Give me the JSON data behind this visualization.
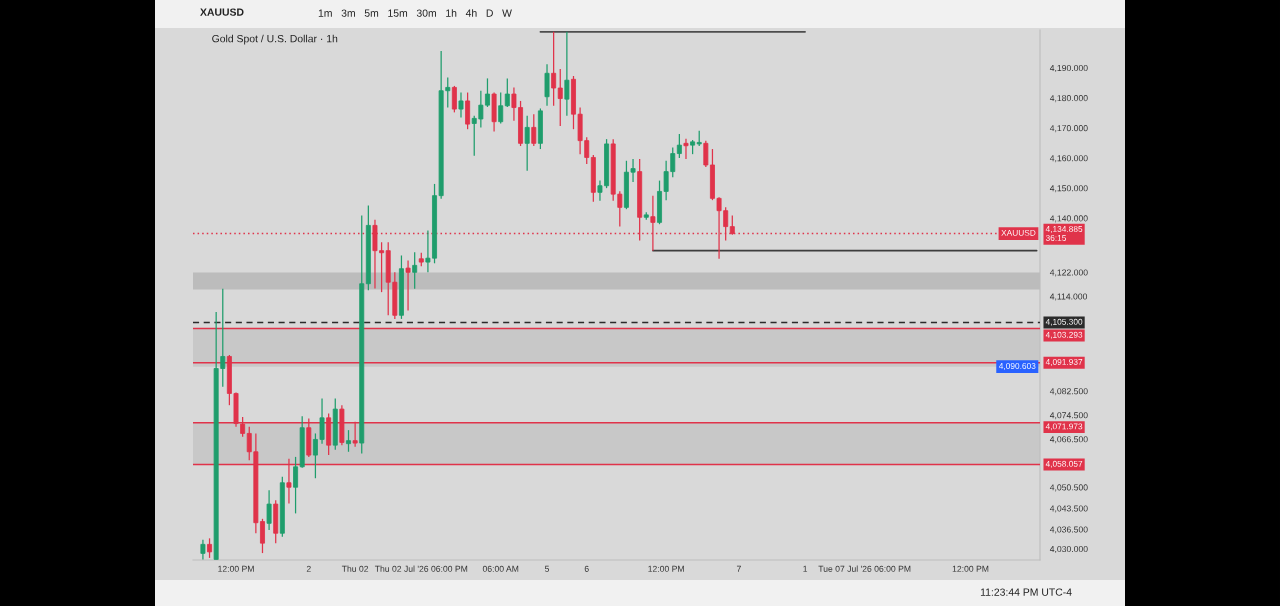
{
  "chart_data": {
    "type": "candlestick",
    "title": "Gold Spot / U.S. Dollar · 1h",
    "subtitle": "XAUUSD",
    "annotations": [
      "1m   3m   5m   15m   30m   1h   4h   D   W",
      "11:23:44 PM UTC-4",
      {
        "text": "XAUUSD",
        "y": 4134.885
      }
    ],
    "categories": [
      null,
      null,
      null,
      null,
      null,
      null,
      "12:00 PM",
      null,
      null,
      null,
      null,
      null,
      null,
      null,
      null,
      null,
      null,
      "2",
      null,
      null,
      null,
      null,
      null,
      null,
      "Thu 02",
      null,
      null,
      null,
      null,
      null,
      null,
      null,
      null,
      null,
      "Thu 02 Jul '26 06:00 PM",
      null,
      null,
      null,
      null,
      null,
      null,
      null,
      null,
      null,
      null,
      null,
      "06:00 AM",
      null,
      null,
      null,
      null,
      null,
      null,
      "5",
      null,
      null,
      null,
      null,
      null,
      "6",
      null,
      null,
      null,
      null,
      null,
      null,
      null,
      null,
      null,
      null,
      null,
      "12:00 PM",
      null,
      null,
      null,
      null,
      null,
      null,
      null,
      null,
      null,
      null,
      "7",
      null,
      null,
      null,
      null,
      null,
      null,
      null,
      null,
      null,
      "1",
      null,
      null,
      null,
      null,
      null,
      null,
      null,
      null,
      "Tue 07 Jul '26 06:00 PM",
      null,
      null,
      null,
      null,
      null,
      null,
      null,
      null,
      null,
      null,
      null,
      null,
      null,
      null,
      null,
      "12:00 PM",
      null,
      null,
      null,
      null,
      null,
      null,
      null,
      null,
      null,
      null
    ],
    "ohlc": [
      null,
      [
        4028.5,
        4033.0,
        4026.5,
        4031.5
      ],
      [
        4031.5,
        4033.5,
        4027.0,
        4029.0
      ],
      [
        4026.5,
        4108.8,
        4026.5,
        4090.0
      ],
      [
        4090.0,
        4116.5,
        4083.9,
        4094.0
      ],
      [
        4094.0,
        4094.5,
        4077.8,
        4081.7
      ],
      [
        4081.7,
        4082.0,
        4070.6,
        4071.7
      ],
      [
        4071.5,
        4073.9,
        4067.3,
        4068.4
      ],
      [
        4068.4,
        4070.6,
        4059.5,
        4062.3
      ],
      [
        4062.3,
        4068.4,
        4035.2,
        4038.7
      ],
      [
        4039.1,
        4040.0,
        4028.6,
        4031.9
      ],
      [
        4038.5,
        4049.5,
        4036.3,
        4044.9
      ],
      [
        4044.9,
        4046.2,
        4031.9,
        4035.2
      ],
      [
        4035.2,
        4054.0,
        4034.0,
        4052.0
      ],
      [
        4052.0,
        4060.0,
        4045.1,
        4050.5
      ],
      [
        4050.5,
        4060.6,
        4041.8,
        4057.3
      ],
      [
        4057.3,
        4074.1,
        4057.0,
        4070.3
      ],
      [
        4070.3,
        4073.4,
        4060.6,
        4061.2
      ],
      [
        4061.2,
        4068.4,
        4053.5,
        4066.4
      ],
      [
        4066.4,
        4080.0,
        4065.0,
        4073.6
      ],
      [
        4073.6,
        4075.0,
        4061.2,
        4064.5
      ],
      [
        4064.5,
        4080.0,
        4063.0,
        4076.5
      ],
      [
        4076.5,
        4077.8,
        4064.5,
        4065.4
      ],
      [
        4065.0,
        4069.5,
        4062.3,
        4066.0
      ],
      [
        4066.0,
        4072.3,
        4064.0,
        4065.2
      ],
      [
        4065.2,
        4140.9,
        4061.7,
        4118.2
      ],
      [
        4118.2,
        4144.2,
        4116.0,
        4137.6
      ],
      [
        4137.6,
        4139.5,
        4116.6,
        4129.2
      ],
      [
        4129.2,
        4132.0,
        4115.4,
        4128.5
      ],
      [
        4129.2,
        4132.0,
        4107.7,
        4118.7
      ],
      [
        4118.7,
        4122.0,
        4106.5,
        4107.7
      ],
      [
        4107.7,
        4127.6,
        4106.5,
        4123.2
      ],
      [
        4123.4,
        4125.9,
        4109.3,
        4122.0
      ],
      [
        4122.0,
        4128.7,
        4116.5,
        4124.3
      ],
      [
        4126.5,
        4128.5,
        4124.0,
        4125.4
      ],
      [
        4125.4,
        4135.9,
        4122.0,
        4126.7
      ],
      [
        4126.7,
        4151.4,
        4125.0,
        4147.5
      ],
      [
        4147.5,
        4195.6,
        4146.5,
        4182.4
      ],
      [
        4182.4,
        4186.8,
        4176.8,
        4183.5
      ],
      [
        4183.5,
        4184.0,
        4175.2,
        4176.3
      ],
      [
        4176.3,
        4181.8,
        4173.5,
        4179.0
      ],
      [
        4179.0,
        4181.8,
        4169.6,
        4171.3
      ],
      [
        4171.5,
        4174.1,
        4160.8,
        4173.2
      ],
      [
        4173.0,
        4182.4,
        4170.2,
        4177.6
      ],
      [
        4177.6,
        4186.5,
        4177.0,
        4181.3
      ],
      [
        4181.3,
        4181.8,
        4168.8,
        4172.1
      ],
      [
        4172.1,
        4181.8,
        4171.5,
        4177.4
      ],
      [
        4177.4,
        4186.5,
        4177.0,
        4181.3
      ],
      [
        4181.3,
        4183.5,
        4172.4,
        4176.8
      ],
      [
        4176.8,
        4179.0,
        4164.0,
        4164.9
      ],
      [
        4164.9,
        4174.1,
        4155.8,
        4170.2
      ],
      [
        4170.2,
        4174.6,
        4164.0,
        4164.9
      ],
      [
        4164.9,
        4176.5,
        4163.0,
        4175.7
      ],
      [
        4180.4,
        4191.2,
        4177.4,
        4188.2
      ],
      [
        4188.2,
        4202.0,
        4177.4,
        4183.3
      ],
      [
        4183.3,
        4189.6,
        4170.7,
        4179.8
      ],
      [
        4179.6,
        4202.0,
        4174.1,
        4185.9
      ],
      [
        4186.2,
        4187.3,
        4169.6,
        4174.6
      ],
      [
        4174.6,
        4176.8,
        4161.3,
        4165.8
      ],
      [
        4165.8,
        4166.9,
        4158.0,
        4160.2
      ],
      [
        4160.2,
        4161.0,
        4145.5,
        4148.6
      ],
      [
        4148.6,
        4152.5,
        4145.8,
        4150.8
      ],
      [
        4150.8,
        4166.3,
        4150.0,
        4164.7
      ],
      [
        4164.7,
        4166.3,
        4145.8,
        4148.0
      ],
      [
        4148.0,
        4149.0,
        4137.2,
        4143.6
      ],
      [
        4143.6,
        4159.1,
        4143.0,
        4155.3
      ],
      [
        4155.3,
        4159.7,
        4152.0,
        4156.5
      ],
      [
        4155.5,
        4159.7,
        4132.6,
        4140.3
      ],
      [
        4140.3,
        4142.0,
        4139.5,
        4141.1
      ],
      [
        4140.5,
        4147.5,
        4129.2,
        4138.6
      ],
      [
        4138.6,
        4152.5,
        4138.0,
        4148.9
      ],
      [
        4148.9,
        4159.1,
        4146.0,
        4155.5
      ],
      [
        4155.5,
        4163.5,
        4153.6,
        4161.5
      ],
      [
        4161.5,
        4168.0,
        4160.0,
        4164.3
      ],
      [
        4164.9,
        4166.4,
        4159.7,
        4164.1
      ],
      [
        4164.3,
        4166.0,
        4161.3,
        4165.4
      ],
      [
        4164.7,
        4169.1,
        4164.0,
        4165.2
      ],
      [
        4164.9,
        4165.8,
        4157.0,
        4157.7
      ],
      [
        4157.7,
        4163.0,
        4146.0,
        4146.6
      ],
      [
        4146.6,
        4147.0,
        4126.5,
        4142.5
      ],
      [
        4142.5,
        4143.6,
        4132.6,
        4137.2
      ],
      [
        4137.2,
        4140.9,
        4134.5,
        4134.885
      ],
      null,
      null,
      null,
      null,
      null,
      null,
      null,
      null,
      null,
      null,
      null,
      null,
      null,
      null,
      null,
      null,
      null,
      null,
      null,
      null,
      null,
      null,
      null,
      null,
      null,
      null,
      null,
      null,
      null,
      null,
      null,
      null,
      null,
      null,
      null,
      null,
      null,
      null,
      null,
      null,
      null,
      null,
      null,
      null,
      null,
      null
    ],
    "series": [
      {
        "type": "line",
        "color": "#3d3d3d",
        "values": [
          null,
          null,
          null,
          null,
          null,
          null,
          null,
          null,
          null,
          null,
          null,
          null,
          null,
          null,
          null,
          null,
          null,
          null,
          null,
          null,
          null,
          null,
          null,
          null,
          null,
          null,
          null,
          null,
          null,
          null,
          null,
          null,
          null,
          null,
          null,
          null,
          null,
          null,
          null,
          null,
          null,
          null,
          null,
          null,
          null,
          null,
          null,
          null,
          null,
          null,
          null,
          null,
          null,
          null,
          null,
          null,
          null,
          null,
          null,
          null,
          null,
          null,
          null,
          null,
          null,
          null,
          null,
          null,
          null,
          4129.2,
          4129.2,
          4129.2,
          4129.2,
          4129.2,
          4129.2,
          4129.2,
          4129.2,
          4129.2,
          4129.2,
          4129.2,
          4129.2,
          4129.2,
          4129.2,
          4129.2,
          4129.2,
          4129.2,
          4129.2,
          4129.2,
          4129.2,
          4129.2,
          4129.2,
          4129.2,
          4129.2,
          4129.2,
          4129.2,
          4129.2,
          4129.2,
          4129.2,
          4129.2,
          4129.2,
          4129.2,
          4129.2,
          4129.2,
          4129.2,
          4129.2,
          4129.2,
          4129.2,
          4129.2,
          4129.2,
          4129.2,
          4129.2,
          4129.2,
          4129.2,
          4129.2,
          4129.2,
          4129.2,
          4129.2,
          4129.2,
          4129.2,
          4129.2,
          4129.2,
          4129.2,
          4129.2,
          4129.2,
          4129.2,
          4129.2,
          4129.2,
          4129.2
        ]
      },
      {
        "type": "line",
        "color": "#4d4d4d",
        "values": [
          null,
          null,
          null,
          null,
          null,
          null,
          null,
          null,
          null,
          null,
          null,
          null,
          null,
          null,
          null,
          null,
          null,
          null,
          null,
          null,
          null,
          null,
          null,
          null,
          null,
          null,
          null,
          null,
          null,
          null,
          null,
          null,
          null,
          null,
          null,
          null,
          null,
          null,
          null,
          null,
          null,
          null,
          null,
          null,
          null,
          null,
          null,
          null,
          null,
          null,
          null,
          null,
          4202.0,
          4202.0,
          4202.0,
          4202.0,
          4202.0,
          4202.0,
          4202.0,
          4202.0,
          4202.0,
          4202.0,
          4202.0,
          4202.0,
          4202.0,
          4202.0,
          4202.0,
          4202.0,
          4202.0,
          4202.0,
          4202.0,
          4202.0,
          4202.0,
          4202.0,
          4202.0,
          4202.0,
          4202.0,
          4202.0,
          4202.0,
          4202.0,
          4202.0,
          4202.0,
          4202.0,
          4202.0,
          4202.0,
          4202.0,
          4202.0,
          4202.0,
          4202.0,
          4202.0,
          4202.0,
          4202.0,
          4202.0,
          null,
          null,
          null,
          null,
          null,
          null,
          null,
          null,
          null,
          null,
          null,
          null,
          null,
          null,
          null,
          null,
          null,
          null,
          null,
          null,
          null,
          null,
          null,
          null,
          null,
          null,
          null,
          null,
          null,
          null,
          null,
          null,
          null,
          null,
          null
        ]
      }
    ],
    "ylim": [
      4026.3,
      4202.6
    ],
    "yticks": [
      {
        "value": 4190,
        "label": "4,190.000"
      },
      {
        "value": 4180,
        "label": "4,180.000"
      },
      {
        "value": 4170,
        "label": "4,170.000"
      },
      {
        "value": 4160,
        "label": "4,160.000"
      },
      {
        "value": 4150,
        "label": "4,150.000"
      },
      {
        "value": 4140,
        "label": "4,140.000"
      },
      {
        "value": 4122,
        "label": "4,122.000"
      },
      {
        "value": 4114,
        "label": "4,114.000"
      },
      {
        "value": 4082.5,
        "label": "4,082.500"
      },
      {
        "value": 4074.5,
        "label": "4,074.500"
      },
      {
        "value": 4066.5,
        "label": "4,066.500"
      },
      {
        "value": 4050.5,
        "label": "4,050.500"
      },
      {
        "value": 4043.5,
        "label": "4,043.500"
      },
      {
        "value": 4036.5,
        "label": "4,036.500"
      },
      {
        "value": 4030,
        "label": "4,030.000"
      }
    ],
    "ref_lines": [
      {
        "axis": "y",
        "value": 4103.293,
        "label": "4,103.293",
        "color": "#e0334a",
        "line_style": "solid"
      },
      {
        "axis": "y",
        "value": 4091.937,
        "label": "4,091.937",
        "color": "#e0334a",
        "line_style": "solid"
      },
      {
        "axis": "y",
        "value": 4071.973,
        "label": "4,071.973",
        "color": "#e0334a",
        "line_style": "solid"
      },
      {
        "axis": "y",
        "value": 4058.057,
        "label": "4,058.057",
        "color": "#e0334a",
        "line_style": "solid"
      },
      {
        "axis": "y",
        "value": 4134.885,
        "label": "4,134.885\n36:15",
        "color": "#e0334a",
        "line_style": "dotted"
      },
      {
        "axis": "y",
        "value": 4105.3,
        "label": "4,105.300",
        "color": "#2b2b2b",
        "line_style": "dashed"
      }
    ],
    "bands": [
      {
        "axis": "y",
        "from": 4116.3,
        "to": 4121.9,
        "color": "#bcbcbc"
      },
      {
        "axis": "y",
        "from": 4090.603,
        "to": 4103.293,
        "label": "4,090.603",
        "color": "#c8c8c8"
      },
      {
        "axis": "y",
        "from": 4058.057,
        "to": 4071.973,
        "color": "#c8c8c8"
      }
    ]
  }
}
